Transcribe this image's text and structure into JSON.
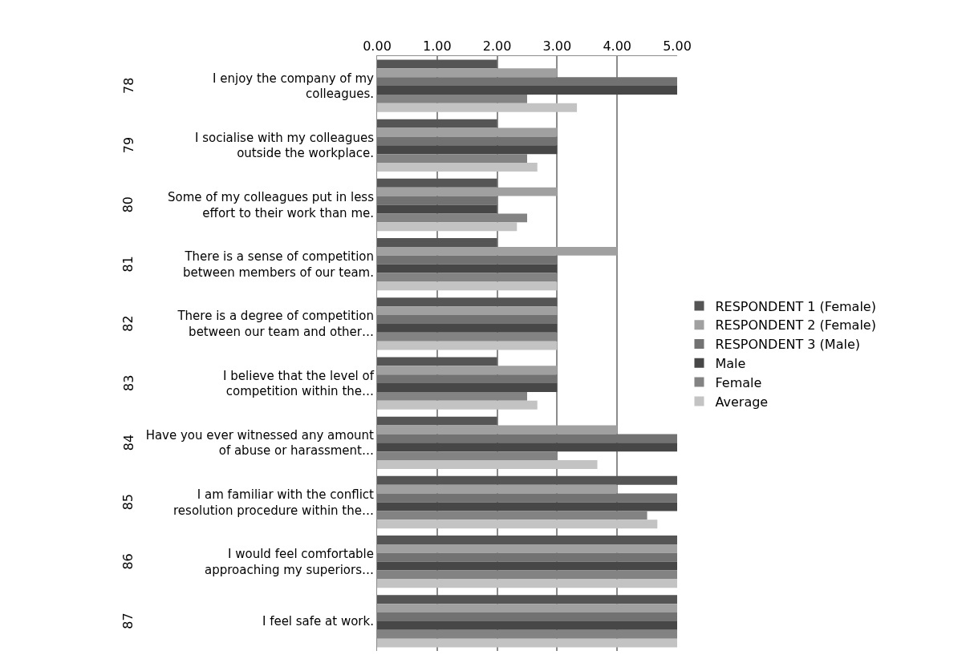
{
  "chart_data": {
    "type": "bar",
    "orientation": "horizontal",
    "categories": [
      "I enjoy the company of my colleagues.",
      "I socialise with my colleagues outside the workplace.",
      "Some of my colleagues put in less effort to their work than me.",
      "There is a sense of competition between members of our team.",
      "There is a degree of competition between our team and other…",
      "I believe that the level of competition within the…",
      "Have you ever witnessed any amount of abuse or harassment…",
      "I am familiar with the conflict resolution procedure within the…",
      "I would feel comfortable approaching my superiors…",
      "I feel safe at work."
    ],
    "annotations": [
      "78",
      "79",
      "80",
      "81",
      "82",
      "83",
      "84",
      "85",
      "86",
      "87"
    ],
    "series": [
      {
        "name": "RESPONDENT 1 (Female)",
        "color": "#555555",
        "values": [
          2,
          2,
          2,
          2,
          3,
          2,
          2,
          5,
          5,
          5
        ]
      },
      {
        "name": "RESPONDENT 2 (Female)",
        "color": "#a0a0a0",
        "values": [
          3,
          3,
          3,
          4,
          3,
          3,
          4,
          4,
          5,
          5
        ]
      },
      {
        "name": "RESPONDENT 3 (Male)",
        "color": "#727272",
        "values": [
          5,
          3,
          2,
          3,
          3,
          3,
          5,
          5,
          5,
          5
        ]
      },
      {
        "name": "Male",
        "color": "#474747",
        "values": [
          5,
          3,
          2,
          3,
          3,
          3,
          5,
          5,
          5,
          5
        ]
      },
      {
        "name": "Female",
        "color": "#838383",
        "values": [
          2.5,
          2.5,
          2.5,
          3,
          3,
          2.5,
          3,
          4.5,
          5,
          5
        ]
      },
      {
        "name": "Average",
        "color": "#c3c3c3",
        "values": [
          3.33,
          2.67,
          2.33,
          3,
          3,
          2.67,
          3.67,
          4.67,
          5,
          5
        ]
      }
    ],
    "xlim": [
      0,
      5
    ],
    "xticks": [
      {
        "value": 0,
        "label": "0.00"
      },
      {
        "value": 1,
        "label": "1.00"
      },
      {
        "value": 2,
        "label": "2.00"
      },
      {
        "value": 3,
        "label": "3.00"
      },
      {
        "value": 4,
        "label": "4.00"
      },
      {
        "value": 5,
        "label": "5.00"
      }
    ],
    "grid": "x",
    "legend": "right"
  }
}
